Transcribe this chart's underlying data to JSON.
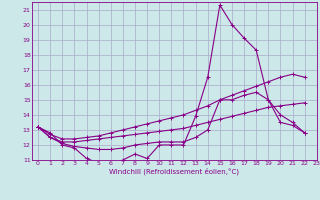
{
  "background_color": "#cce8e8",
  "grid_color": "#aaaacc",
  "line_color": "#880088",
  "marker": "+",
  "xlabel": "Windchill (Refroidissement éolien,°C)",
  "xlabel_color": "#880088",
  "xlim": [
    -0.5,
    23
  ],
  "ylim": [
    11,
    21.5
  ],
  "yticks": [
    11,
    12,
    13,
    14,
    15,
    16,
    17,
    18,
    19,
    20,
    21
  ],
  "xticks": [
    0,
    1,
    2,
    3,
    4,
    5,
    6,
    7,
    8,
    9,
    10,
    11,
    12,
    13,
    14,
    15,
    16,
    17,
    18,
    19,
    20,
    21,
    22,
    23
  ],
  "series": [
    {
      "x": [
        0,
        1,
        2,
        3,
        4,
        5,
        6,
        7,
        8,
        9,
        10,
        11,
        12,
        13,
        14,
        15,
        16,
        17,
        18,
        19,
        20,
        21,
        22
      ],
      "y": [
        13.2,
        12.8,
        12.0,
        11.8,
        11.1,
        10.8,
        10.7,
        11.0,
        11.4,
        11.1,
        12.0,
        12.0,
        12.0,
        13.9,
        16.5,
        21.3,
        20.0,
        19.1,
        18.3,
        15.0,
        14.0,
        13.5,
        12.8
      ]
    },
    {
      "x": [
        0,
        1,
        2,
        3,
        4,
        5,
        6,
        7,
        8,
        9,
        10,
        11,
        12,
        13,
        14,
        15,
        16,
        17,
        18,
        19,
        20,
        21,
        22
      ],
      "y": [
        13.2,
        12.7,
        12.4,
        12.4,
        12.5,
        12.6,
        12.8,
        13.0,
        13.2,
        13.4,
        13.6,
        13.8,
        14.0,
        14.3,
        14.6,
        15.0,
        15.3,
        15.6,
        15.9,
        16.2,
        16.5,
        16.7,
        16.5
      ]
    },
    {
      "x": [
        0,
        1,
        2,
        3,
        4,
        5,
        6,
        7,
        8,
        9,
        10,
        11,
        12,
        13,
        14,
        15,
        16,
        17,
        18,
        19,
        20,
        21,
        22
      ],
      "y": [
        13.2,
        12.5,
        12.2,
        12.2,
        12.3,
        12.4,
        12.5,
        12.6,
        12.7,
        12.8,
        12.9,
        13.0,
        13.1,
        13.3,
        13.5,
        13.7,
        13.9,
        14.1,
        14.3,
        14.5,
        14.6,
        14.7,
        14.8
      ]
    },
    {
      "x": [
        0,
        1,
        2,
        3,
        4,
        5,
        6,
        7,
        8,
        9,
        10,
        11,
        12,
        13,
        14,
        15,
        16,
        17,
        18,
        19,
        20,
        21,
        22
      ],
      "y": [
        13.2,
        12.5,
        12.1,
        11.9,
        11.8,
        11.7,
        11.7,
        11.8,
        12.0,
        12.1,
        12.2,
        12.2,
        12.2,
        12.5,
        13.0,
        15.0,
        15.0,
        15.3,
        15.5,
        15.0,
        13.5,
        13.3,
        12.8
      ]
    }
  ]
}
